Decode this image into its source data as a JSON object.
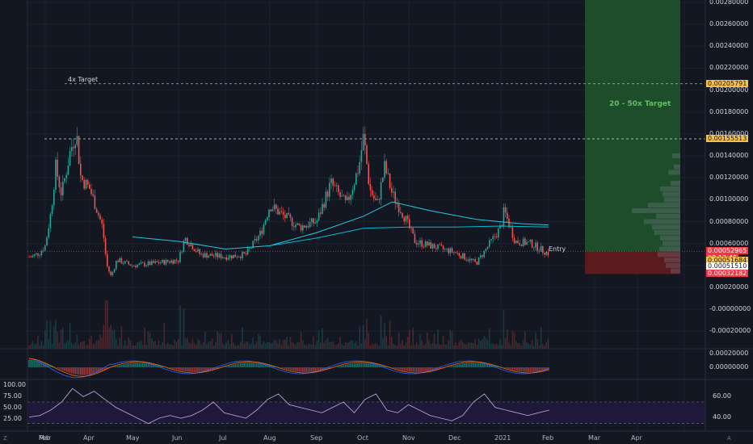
{
  "chart_data": {
    "type": "candlestick",
    "x_axis_labels": [
      "Feb",
      "Mar",
      "Apr",
      "May",
      "Jun",
      "Jul",
      "Aug",
      "Sep",
      "Oct",
      "Nov",
      "Dec",
      "2021",
      "Feb",
      "Mar",
      "Apr"
    ],
    "price_axis_labels": [
      "0.00280000",
      "0.00260000",
      "0.00240000",
      "0.00220000",
      "0.00200000",
      "0.00180000",
      "0.00160000",
      "0.00140000",
      "0.00120000",
      "0.00100000",
      "0.00080000",
      "0.00060000",
      "0.00040000",
      "0.00020000",
      "-0.00000000",
      "-0.00020000"
    ],
    "macd_axis_labels": [
      "0.00020000",
      "0.00000000"
    ],
    "rsi_left_labels": [
      "100.00",
      "75.00",
      "50.00",
      "25.00"
    ],
    "rsi_right_labels": [
      "60.00",
      "40.00"
    ],
    "price_tags": [
      {
        "text": "0.00205791",
        "color": "#f7c048",
        "fg": "#131722"
      },
      {
        "text": "0.00155513",
        "color": "#f7c048",
        "fg": "#131722"
      },
      {
        "text": "0.00052965",
        "color": "#f23645",
        "fg": "#ffffff"
      },
      {
        "text": "08:13:46",
        "color": "#f23645",
        "fg": "#ffffff"
      },
      {
        "text": "0.00051684",
        "color": "#f7c048",
        "fg": "#131722"
      },
      {
        "text": "0.00051510",
        "color": "#ffffff",
        "fg": "#131722"
      },
      {
        "text": "0.00032182",
        "color": "#f23645",
        "fg": "#ffffff"
      }
    ],
    "annotations": {
      "target_4x": "4x Target",
      "target_20_50x": "20 - 50x Target",
      "entry": "Entry"
    },
    "levels": {
      "target_4x": 0.00205791,
      "resistance": 0.00155513,
      "entry": 0.00052965,
      "stop": 0.00032182
    },
    "price_path": [
      [
        "Jan 15",
        0.00048
      ],
      [
        "Jan 25",
        0.00052
      ],
      [
        "Feb 1",
        0.00058
      ],
      [
        "Feb 5",
        0.0009
      ],
      [
        "Feb 8",
        0.0013
      ],
      [
        "Feb 12",
        0.00105
      ],
      [
        "Feb 18",
        0.00145
      ],
      [
        "Feb 22",
        0.00162
      ],
      [
        "Feb 25",
        0.0012
      ],
      [
        "Mar 1",
        0.0011
      ],
      [
        "Mar 5",
        0.00095
      ],
      [
        "Mar 10",
        0.00075
      ],
      [
        "Mar 13",
        0.0004
      ],
      [
        "Mar 16",
        0.0003
      ],
      [
        "Mar 20",
        0.00045
      ],
      [
        "Apr 1",
        0.0004
      ],
      [
        "Apr 15",
        0.00042
      ],
      [
        "May 1",
        0.00045
      ],
      [
        "May 5",
        0.00065
      ],
      [
        "May 15",
        0.0005
      ],
      [
        "Jun 1",
        0.00048
      ],
      [
        "Jun 15",
        0.0005
      ],
      [
        "Jun 25",
        0.0007
      ],
      [
        "Jul 1",
        0.00095
      ],
      [
        "Jul 10",
        0.00085
      ],
      [
        "Jul 20",
        0.00075
      ],
      [
        "Aug 1",
        0.0008
      ],
      [
        "Aug 10",
        0.00115
      ],
      [
        "Aug 20",
        0.00095
      ],
      [
        "Aug 28",
        0.0013
      ],
      [
        "Sep 1",
        0.00158
      ],
      [
        "Sep 5",
        0.0011
      ],
      [
        "Sep 10",
        0.00095
      ],
      [
        "Sep 15",
        0.0013
      ],
      [
        "Sep 20",
        0.00105
      ],
      [
        "Sep 28",
        0.00085
      ],
      [
        "Oct 5",
        0.00062
      ],
      [
        "Oct 15",
        0.00058
      ],
      [
        "Nov 1",
        0.00052
      ],
      [
        "Nov 15",
        0.00042
      ],
      [
        "Dec 1",
        0.00075
      ],
      [
        "Dec 3",
        0.0009
      ],
      [
        "Dec 10",
        0.00062
      ],
      [
        "Dec 20",
        0.0006
      ],
      [
        "Dec 28",
        0.00053
      ],
      [
        "Jan 1",
        0.00051
      ]
    ],
    "ma_long": [
      [
        "Apr 1",
        0.00066
      ],
      [
        "May 1",
        0.00062
      ],
      [
        "Jun 1",
        0.00055
      ],
      [
        "Jul 1",
        0.00058
      ],
      [
        "Aug 1",
        0.0007
      ],
      [
        "Sep 1",
        0.00085
      ],
      [
        "Sep 20",
        0.00098
      ],
      [
        "Oct 15",
        0.0009
      ],
      [
        "Nov 15",
        0.00082
      ],
      [
        "Dec 15",
        0.00078
      ],
      [
        "Jan 1",
        0.00077
      ]
    ],
    "ma_short": [
      [
        "Jul 1",
        0.00058
      ],
      [
        "Aug 1",
        0.00065
      ],
      [
        "Sep 1",
        0.00074
      ],
      [
        "Oct 1",
        0.00075
      ],
      [
        "Nov 1",
        0.00075
      ],
      [
        "Dec 1",
        0.00076
      ],
      [
        "Jan 1",
        0.00075
      ]
    ],
    "rsi_values": [
      42,
      45,
      55,
      70,
      95,
      80,
      90,
      75,
      60,
      50,
      40,
      30,
      40,
      45,
      40,
      45,
      55,
      70,
      50,
      45,
      40,
      55,
      75,
      85,
      65,
      60,
      55,
      50,
      60,
      70,
      50,
      75,
      85,
      55,
      50,
      65,
      55,
      45,
      40,
      35,
      45,
      70,
      85,
      60,
      55,
      50,
      45,
      50,
      55
    ],
    "colors": {
      "up": "#26a69a",
      "down": "#ef5350",
      "bg": "#131722",
      "grid": "#1e222d",
      "target_zone": "#1e4d2b",
      "stop_zone": "#5b1a1e",
      "rsi_bg": "#1f1838",
      "rsi_line": "#b39ddb"
    }
  },
  "ui": {
    "bottom_left_icon": "Z",
    "bottom_right_icon": "A"
  }
}
